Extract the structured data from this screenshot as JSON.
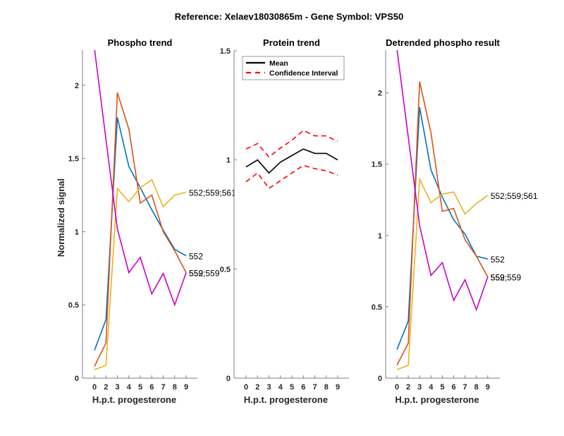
{
  "figure": {
    "suptitle": "Reference:  Xelaev18030865m - Gene Symbol:  VPS50"
  },
  "colors": {
    "blue": "#0072BD",
    "orange": "#D95319",
    "yellow": "#EDB120",
    "magenta": "#CC00CC",
    "mean": "#000000",
    "ci": "#FF0000",
    "axis": "#7F7F7F"
  },
  "chart_data": [
    {
      "type": "line",
      "title": "Phospho trend",
      "xlabel": "H.p.t. progesterone",
      "ylabel": "Normalized signal",
      "categories": [
        "0",
        "2",
        "3",
        "4",
        "5",
        "6",
        "7",
        "8",
        "9"
      ],
      "ylim": [
        0,
        2.24
      ],
      "yticks": [
        "0",
        "0.5",
        "1",
        "1.5",
        "2"
      ],
      "ytick_values": [
        0,
        0.5,
        1,
        1.5,
        2
      ],
      "grid": false,
      "series": [
        {
          "name": "552",
          "color_key": "blue",
          "label": "552",
          "values": [
            0.19,
            0.4,
            1.78,
            1.445,
            1.3,
            1.15,
            1.01,
            0.88,
            0.835
          ]
        },
        {
          "name": "559",
          "color_key": "orange",
          "label": "559",
          "values": [
            0.08,
            0.24,
            1.95,
            1.7,
            1.195,
            1.25,
            1.0,
            0.87,
            0.72
          ]
        },
        {
          "name": "552;559;561",
          "color_key": "yellow",
          "label": "552;559;561",
          "values": [
            0.058,
            0.087,
            1.295,
            1.205,
            1.3,
            1.355,
            1.17,
            1.25,
            1.27
          ]
        },
        {
          "name": "552;559",
          "color_key": "magenta",
          "label": "552;559",
          "values": [
            2.25,
            1.63,
            1.02,
            0.72,
            0.825,
            0.575,
            0.715,
            0.5,
            0.72
          ]
        }
      ]
    },
    {
      "type": "line",
      "title": "Protein trend",
      "xlabel": "H.p.t. progesterone",
      "ylabel": "",
      "categories": [
        "0",
        "2",
        "3",
        "4",
        "5",
        "6",
        "7",
        "8",
        "9"
      ],
      "ylim": [
        0,
        1.5
      ],
      "yticks": [
        "0",
        "0.5",
        "1",
        "1.5"
      ],
      "ytick_values": [
        0,
        0.5,
        1,
        1.5
      ],
      "grid": false,
      "legend": {
        "position": "top-left",
        "entries": [
          "Mean",
          "Confidence Interval"
        ]
      },
      "series": [
        {
          "name": "Mean",
          "color_key": "mean",
          "style": "solid",
          "values": [
            0.968,
            1.0,
            0.94,
            0.99,
            1.02,
            1.05,
            1.03,
            1.03,
            1.0
          ]
        },
        {
          "name": "Confidence Interval (upper)",
          "color_key": "ci",
          "style": "dashed",
          "values": [
            1.05,
            1.075,
            1.013,
            1.055,
            1.09,
            1.135,
            1.11,
            1.11,
            1.085
          ]
        },
        {
          "name": "Confidence Interval (lower)",
          "color_key": "ci",
          "style": "dashed",
          "values": [
            0.9,
            0.94,
            0.87,
            0.905,
            0.94,
            0.975,
            0.96,
            0.95,
            0.93
          ]
        }
      ]
    },
    {
      "type": "line",
      "title": "Detrended phospho result",
      "xlabel": "H.p.t. progesterone",
      "ylabel": "",
      "categories": [
        "0",
        "2",
        "3",
        "4",
        "5",
        "6",
        "7",
        "8",
        "9"
      ],
      "ylim": [
        0,
        2.3
      ],
      "yticks": [
        "0",
        "0.5",
        "1",
        "1.5",
        "2"
      ],
      "ytick_values": [
        0,
        0.5,
        1,
        1.5,
        2
      ],
      "grid": false,
      "series": [
        {
          "name": "552",
          "color_key": "blue",
          "label": "552",
          "values": [
            0.2,
            0.4,
            1.9,
            1.46,
            1.27,
            1.11,
            1.01,
            0.855,
            0.835
          ]
        },
        {
          "name": "559",
          "color_key": "orange",
          "label": "559",
          "values": [
            0.09,
            0.245,
            2.08,
            1.72,
            1.17,
            1.19,
            0.97,
            0.855,
            0.71
          ]
        },
        {
          "name": "552;559;561",
          "color_key": "yellow",
          "label": "552;559;561",
          "values": [
            0.06,
            0.09,
            1.395,
            1.23,
            1.29,
            1.305,
            1.15,
            1.225,
            1.28
          ]
        },
        {
          "name": "552;559",
          "color_key": "magenta",
          "label": "552;559",
          "values": [
            2.31,
            1.69,
            1.07,
            0.72,
            0.81,
            0.545,
            0.69,
            0.48,
            0.71
          ]
        }
      ]
    }
  ]
}
